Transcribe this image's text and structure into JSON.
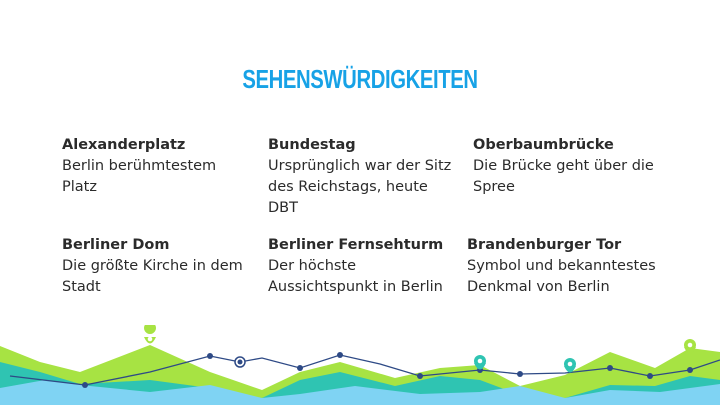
{
  "slide": {
    "title": "SEHENSWÜRDIGKEITEN",
    "items": [
      {
        "name": "Alexanderplatz",
        "desc": "Berlin berühmtestem Platz"
      },
      {
        "name": "Bundestag",
        "desc": "Ursprünglich war der Sitz des Reichstags, heute DBT"
      },
      {
        "name": "Oberbaumbrücke",
        "desc": "Die Brücke geht über die Spree"
      },
      {
        "name": "Berliner Dom",
        "desc": "Die größte Kirche in dem Stadt"
      },
      {
        "name": "Berliner Fernsehturm",
        "desc": "Der höchste Aussichtspunkt in Berlin"
      },
      {
        "name": "Brandenburger Tor",
        "desc": "Symbol und bekanntestes Denkmal von Berlin"
      }
    ]
  },
  "colors": {
    "accent_blue": "#17a2e6",
    "lime": "#a7e343",
    "teal": "#2fc4b2",
    "light_blue": "#7fd3f3",
    "navy": "#2e4a86"
  },
  "icons": [
    "map-pin-icon"
  ]
}
